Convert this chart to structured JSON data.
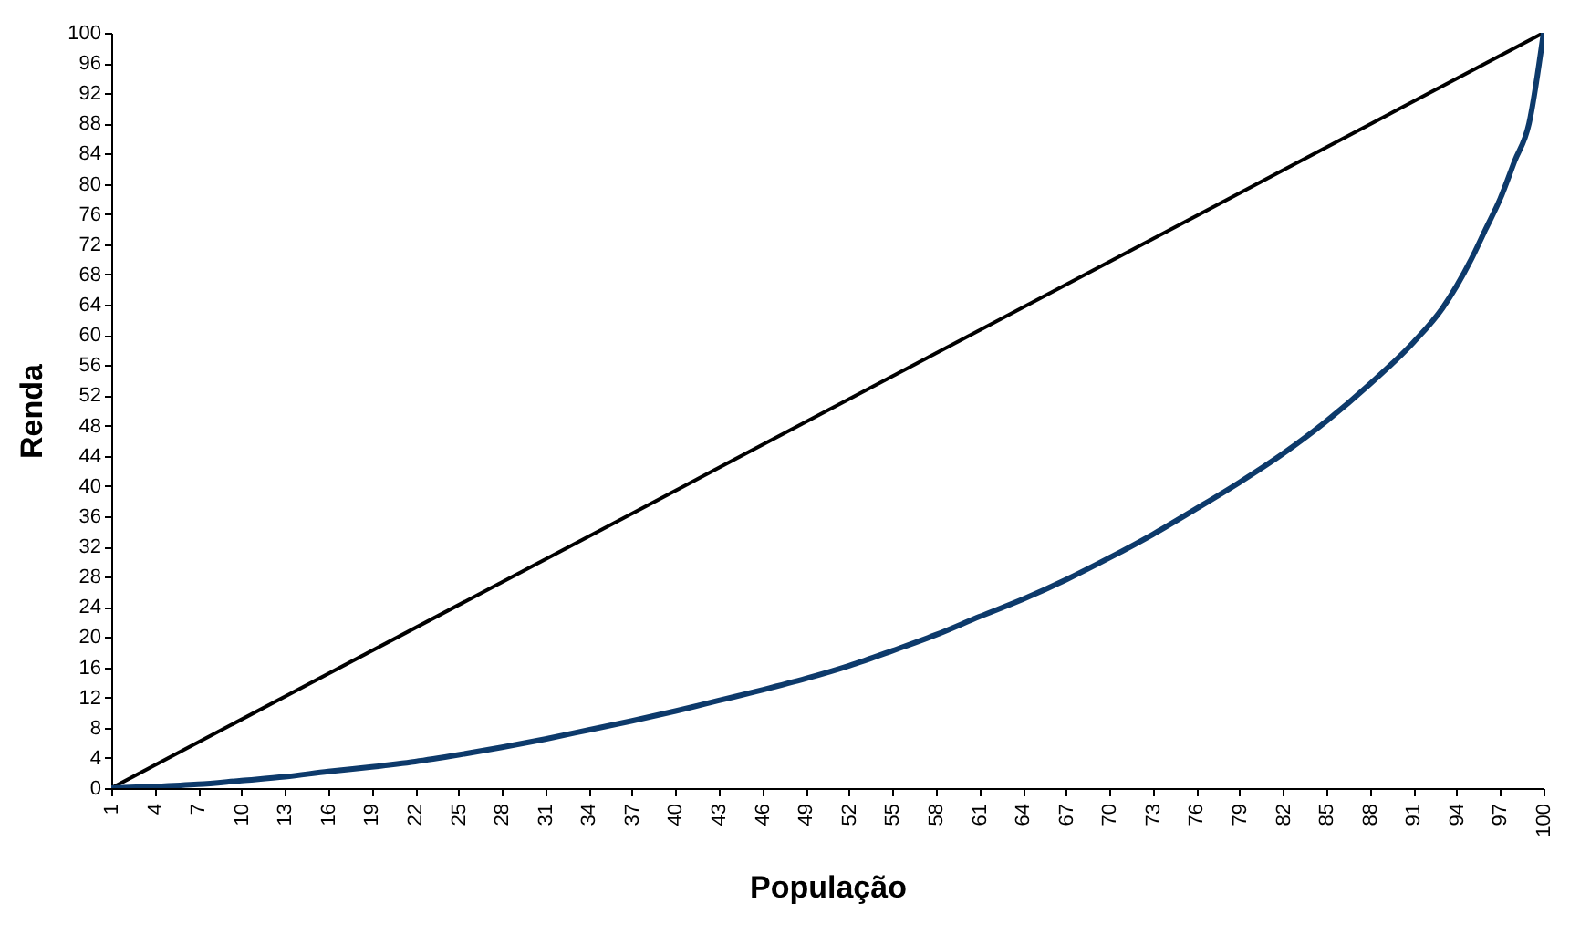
{
  "chart_data": {
    "type": "line",
    "xlabel": "População",
    "ylabel": "Renda",
    "xlim": [
      1,
      100
    ],
    "xticks": [
      1,
      4,
      7,
      10,
      13,
      16,
      19,
      22,
      25,
      28,
      31,
      34,
      37,
      40,
      43,
      46,
      49,
      52,
      55,
      58,
      61,
      64,
      67,
      70,
      73,
      76,
      79,
      82,
      85,
      88,
      91,
      94,
      97,
      100
    ],
    "ylim": [
      0,
      100
    ],
    "yticks": [
      0,
      4,
      8,
      12,
      16,
      20,
      24,
      28,
      32,
      36,
      40,
      44,
      48,
      52,
      56,
      60,
      64,
      68,
      72,
      76,
      80,
      84,
      88,
      92,
      96,
      100
    ],
    "grid": false,
    "marker": "none",
    "line_style": "solid",
    "series": [
      {
        "color": "#000000",
        "x": [
          1,
          100
        ],
        "values": [
          0,
          100
        ]
      },
      {
        "color": "#0d3a6b",
        "x": [
          1,
          4,
          7,
          10,
          13,
          16,
          19,
          22,
          25,
          28,
          31,
          34,
          37,
          40,
          43,
          46,
          49,
          52,
          55,
          58,
          61,
          64,
          67,
          70,
          73,
          76,
          79,
          82,
          85,
          88,
          91,
          93,
          94,
          95,
          96,
          97,
          98,
          99,
          100
        ],
        "values": [
          0,
          0.2,
          0.5,
          1,
          1.5,
          2.2,
          2.8,
          3.5,
          4.4,
          5.4,
          6.5,
          7.7,
          8.9,
          10.2,
          11.6,
          13,
          14.5,
          16.2,
          18.2,
          20.3,
          22.7,
          25,
          27.6,
          30.5,
          33.6,
          37,
          40.5,
          44.3,
          48.6,
          53.5,
          59,
          63.5,
          66.5,
          70,
          74,
          78,
          83,
          88,
          100
        ]
      }
    ]
  }
}
